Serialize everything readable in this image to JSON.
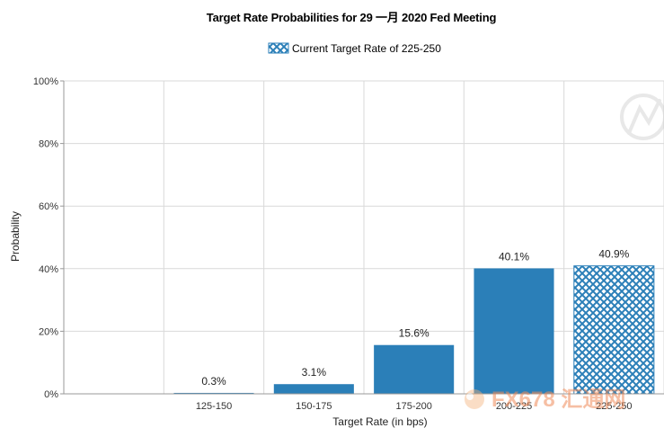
{
  "chart_data": {
    "type": "bar",
    "title": "Target Rate Probabilities for 29 一月 2020 Fed Meeting",
    "legend": {
      "label": "Current Target Rate of 225-250",
      "placement": "top-center"
    },
    "xlabel": "Target Rate (in bps)",
    "ylabel": "Probability",
    "categories": [
      "125-150",
      "150-175",
      "175-200",
      "200-225",
      "225-250"
    ],
    "values": [
      0.3,
      3.1,
      15.6,
      40.1,
      40.9
    ],
    "data_labels": [
      "0.3%",
      "3.1%",
      "15.6%",
      "40.1%",
      "40.9%"
    ],
    "current_target_category": "225-250",
    "ylim": [
      0,
      100
    ],
    "yticks": [
      0,
      20,
      40,
      60,
      80,
      100
    ],
    "ytick_labels": [
      "0%",
      "20%",
      "40%",
      "60%",
      "80%",
      "100%"
    ],
    "grid": true,
    "colors": {
      "bar": "#2b7fb8",
      "hatch_bg": "#ffffff",
      "grid": "#d9d9d9",
      "axis": "#999999"
    }
  },
  "watermark": {
    "text": "FX678 汇通网"
  }
}
